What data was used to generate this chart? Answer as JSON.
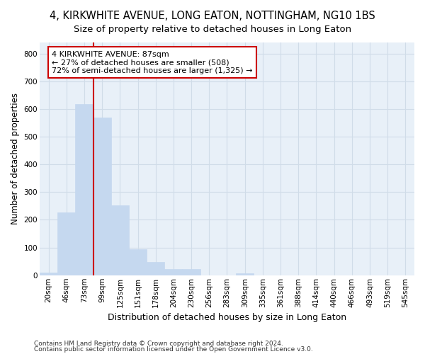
{
  "title": "4, KIRKWHITE AVENUE, LONG EATON, NOTTINGHAM, NG10 1BS",
  "subtitle": "Size of property relative to detached houses in Long Eaton",
  "xlabel": "Distribution of detached houses by size in Long Eaton",
  "ylabel": "Number of detached properties",
  "categories": [
    "20sqm",
    "46sqm",
    "73sqm",
    "99sqm",
    "125sqm",
    "151sqm",
    "178sqm",
    "204sqm",
    "230sqm",
    "256sqm",
    "283sqm",
    "309sqm",
    "335sqm",
    "361sqm",
    "388sqm",
    "414sqm",
    "440sqm",
    "466sqm",
    "493sqm",
    "519sqm",
    "545sqm"
  ],
  "values": [
    10,
    228,
    618,
    568,
    253,
    95,
    48,
    22,
    22,
    0,
    0,
    8,
    0,
    0,
    0,
    0,
    0,
    0,
    0,
    0,
    0
  ],
  "bar_color": "#c5d8ef",
  "bar_edge_color": "#c5d8ef",
  "vline_x_index": 2.5,
  "vline_color": "#cc0000",
  "annotation_line1": "4 KIRKWHITE AVENUE: 87sqm",
  "annotation_line2": "← 27% of detached houses are smaller (508)",
  "annotation_line3": "72% of semi-detached houses are larger (1,325) →",
  "annotation_box_facecolor": "#ffffff",
  "annotation_box_edgecolor": "#cc0000",
  "ylim": [
    0,
    840
  ],
  "yticks": [
    0,
    100,
    200,
    300,
    400,
    500,
    600,
    700,
    800
  ],
  "bg_color": "#ffffff",
  "plot_bg_color": "#e8f0f8",
  "grid_color": "#d0dce8",
  "title_fontsize": 10.5,
  "subtitle_fontsize": 9.5,
  "xlabel_fontsize": 9,
  "ylabel_fontsize": 8.5,
  "tick_fontsize": 7.5,
  "footnote1": "Contains HM Land Registry data © Crown copyright and database right 2024.",
  "footnote2": "Contains public sector information licensed under the Open Government Licence v3.0."
}
